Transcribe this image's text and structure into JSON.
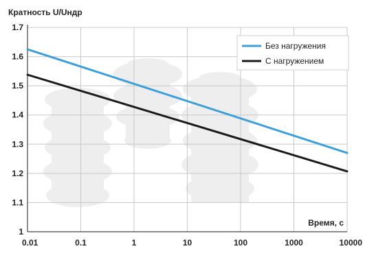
{
  "chart_data": {
    "type": "line",
    "ylabel": "Кратность U/Uндр",
    "xlabel": "Время, с",
    "x_scale": "log",
    "xlim": [
      0.01,
      10000
    ],
    "ylim": [
      1.0,
      1.7
    ],
    "x_ticks": [
      "0.01",
      "0.1",
      "1",
      "10",
      "100",
      "1000",
      "10000"
    ],
    "y_ticks": [
      "1",
      "1.1",
      "1.2",
      "1.3",
      "1.4",
      "1.5",
      "1.6",
      "1.7"
    ],
    "grid": true,
    "legend_position": "top-right",
    "series": [
      {
        "name": "Без нагружения",
        "color": "#3d9fd8",
        "x": [
          0.01,
          10000
        ],
        "y": [
          1.625,
          1.27
        ]
      },
      {
        "name": "С нагружением",
        "color": "#1a1a1a",
        "x": [
          0.01,
          10000
        ],
        "y": [
          1.538,
          1.207
        ]
      }
    ]
  }
}
